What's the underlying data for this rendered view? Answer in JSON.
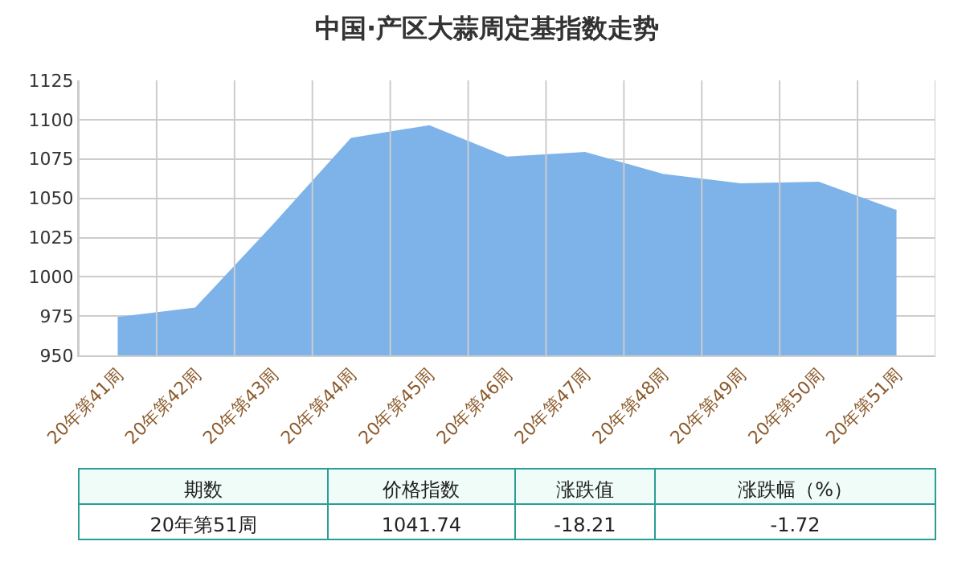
{
  "chart_data": {
    "type": "area",
    "title": "中国·产区大蒜周定基指数走势",
    "categories": [
      "20年第41周",
      "20年第42周",
      "20年第43周",
      "20年第44周",
      "20年第45周",
      "20年第46周",
      "20年第47周",
      "20年第48周",
      "20年第49周",
      "20年第50周",
      "20年第51周"
    ],
    "series": [
      {
        "color": "#7eb3e9",
        "values": [
          974,
          980,
          1033,
          1088,
          1096,
          1076,
          1079,
          1065,
          1059,
          1060,
          1042
        ]
      }
    ],
    "ylim": [
      950,
      1125
    ],
    "yticks": [
      950,
      975,
      1000,
      1025,
      1050,
      1075,
      1100,
      1125
    ],
    "grid": true,
    "annotations": [
      "期数",
      "价格指数",
      "涨跌值",
      "涨跌幅（%）",
      "20年第51周",
      "1041.74",
      "-18.21",
      "-1.72"
    ]
  }
}
